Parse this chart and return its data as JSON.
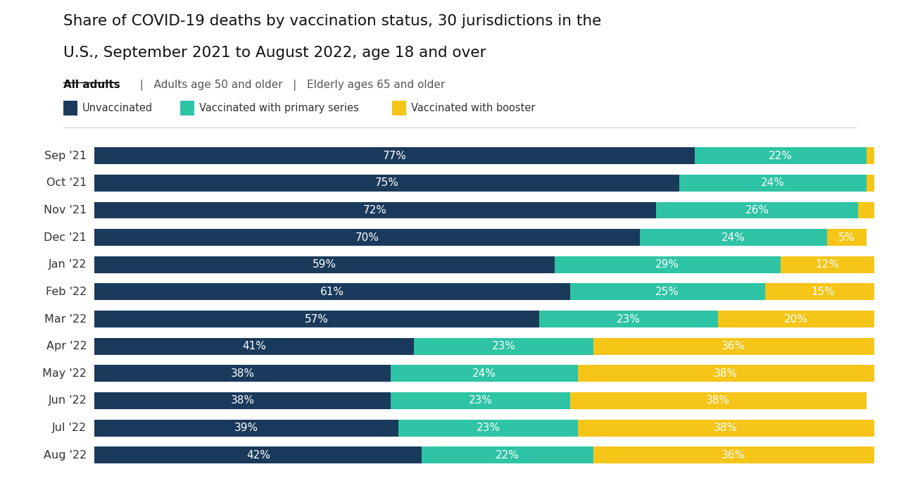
{
  "title_line1": "Share of COVID-19 deaths by vaccination status, 30 jurisdictions in the",
  "title_line2": "U.S., September 2021 to August 2022, age 18 and over",
  "subtitle_bold": "All adults",
  "subtitle_rest": "  |   Adults age 50 and older   |   Elderly ages 65 and older",
  "legend_items": [
    "Unvaccinated",
    "Vaccinated with primary series",
    "Vaccinated with booster"
  ],
  "legend_colors": [
    "#1a3a5c",
    "#2ec4a5",
    "#f5c518"
  ],
  "months": [
    "Sep '21",
    "Oct '21",
    "Nov '21",
    "Dec '21",
    "Jan '22",
    "Feb '22",
    "Mar '22",
    "Apr '22",
    "May '22",
    "Jun '22",
    "Jul '22",
    "Aug '22"
  ],
  "unvaccinated": [
    77,
    75,
    72,
    70,
    59,
    61,
    57,
    41,
    38,
    38,
    39,
    42
  ],
  "primary_series": [
    22,
    24,
    26,
    24,
    29,
    25,
    23,
    23,
    24,
    23,
    23,
    22
  ],
  "booster": [
    1,
    1,
    2,
    5,
    12,
    15,
    20,
    36,
    38,
    38,
    38,
    36
  ],
  "color_unvax": "#1a3a5c",
  "color_primary": "#2ec4a5",
  "color_booster": "#f5c518",
  "bg_color": "#ffffff",
  "bar_height": 0.62,
  "booster_labels": [
    "",
    "",
    "",
    "5%",
    "12%",
    "15%",
    "20%",
    "36%",
    "38%",
    "38%",
    "38%",
    "36%"
  ]
}
